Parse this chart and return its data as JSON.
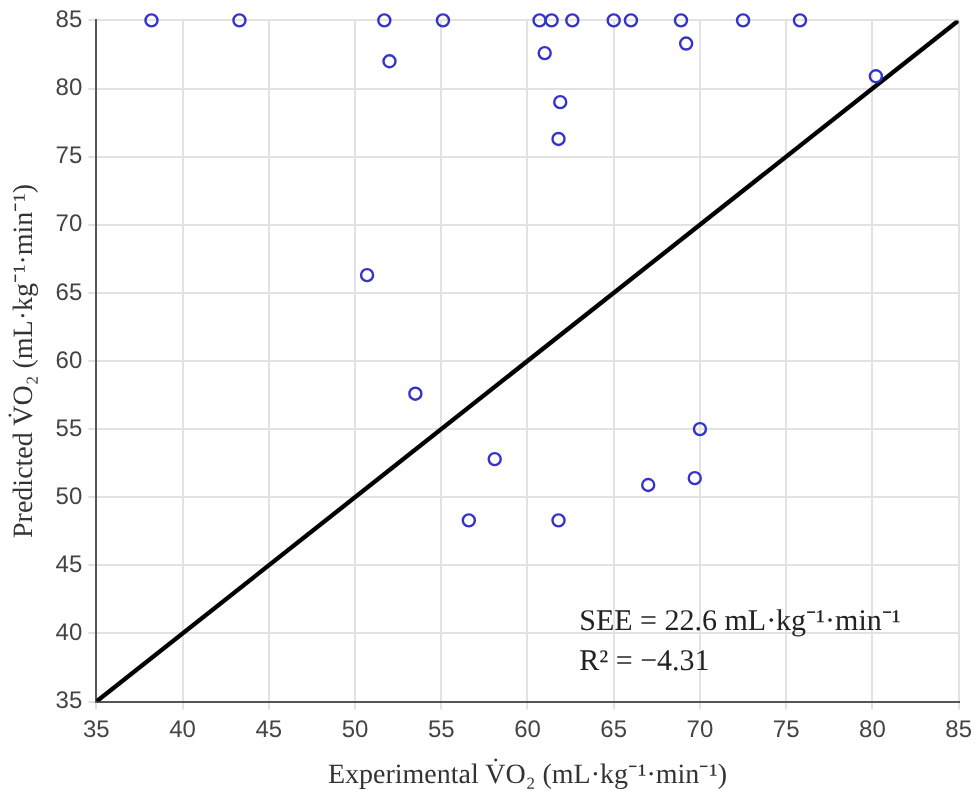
{
  "chart_data": {
    "type": "scatter",
    "xlabel": "Experimental V̇O₂ (mL·kg⁻¹·min⁻¹)",
    "ylabel": "Predicted V̇O₂ (mL·kg⁻¹·min⁻¹)",
    "xlim": [
      35,
      85
    ],
    "ylim": [
      35,
      85
    ],
    "xticks": [
      35,
      40,
      45,
      50,
      55,
      60,
      65,
      70,
      75,
      80,
      85
    ],
    "yticks": [
      35,
      40,
      45,
      50,
      55,
      60,
      65,
      70,
      75,
      80,
      85
    ],
    "grid": true,
    "legend": false,
    "marker": "circle",
    "series": [
      {
        "type": "scatter",
        "color": "#3333cc",
        "x": [
          38.2,
          43.3,
          51.7,
          55.1,
          60.7,
          61.4,
          62.6,
          65.0,
          66.0,
          68.9,
          72.5,
          75.8,
          52.0,
          61.0,
          69.2,
          61.9,
          61.8,
          80.2,
          50.7,
          53.5,
          58.1,
          56.6,
          61.8,
          67.0,
          69.7,
          70.0
        ],
        "values": [
          85,
          85,
          85,
          85,
          85,
          85,
          85,
          85,
          85,
          85,
          85,
          85,
          82.0,
          82.6,
          83.3,
          79.0,
          76.3,
          80.9,
          66.3,
          57.6,
          52.8,
          48.3,
          48.3,
          50.9,
          51.4,
          55.0
        ]
      },
      {
        "type": "line",
        "color": "#000000",
        "marker": "none",
        "x": [
          35,
          85
        ],
        "values": [
          35,
          85
        ]
      }
    ],
    "annotations": [
      "SEE = 22.6 mL·kg⁻¹·min⁻¹",
      "R² = −4.31"
    ]
  }
}
